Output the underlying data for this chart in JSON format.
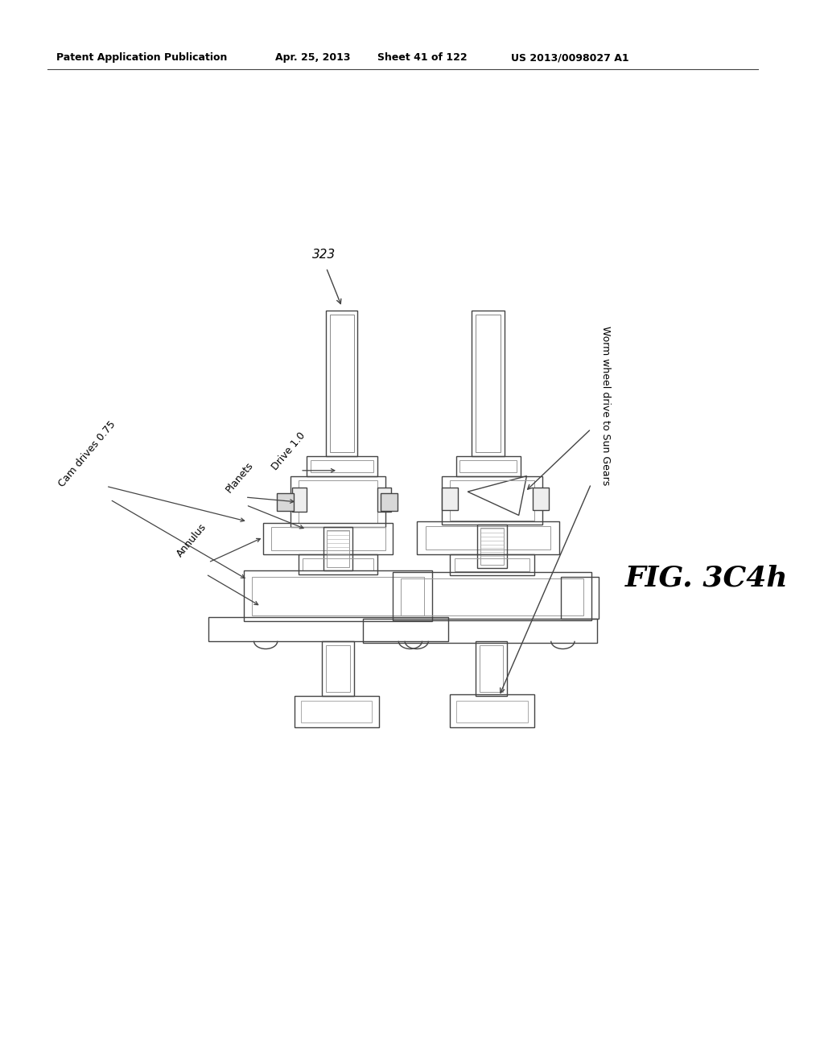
{
  "background_color": "#ffffff",
  "header_text": "Patent Application Publication",
  "header_date": "Apr. 25, 2013",
  "header_sheet": "Sheet 41 of 122",
  "header_patent": "US 2013/0098027 A1",
  "fig_label": "FIG. 3C4h",
  "ref_number": "323",
  "labels": {
    "cam_drives": "Cam drives 0.75",
    "planets": "Planets",
    "annulus": "Annulus",
    "drive": "Drive 1.0",
    "worm_wheel": "Worm wheel drive to Sun Gears"
  },
  "line_color": "#444444",
  "text_color": "#000000",
  "gray_fill": "#d8d8d8",
  "light_fill": "#eeeeee"
}
